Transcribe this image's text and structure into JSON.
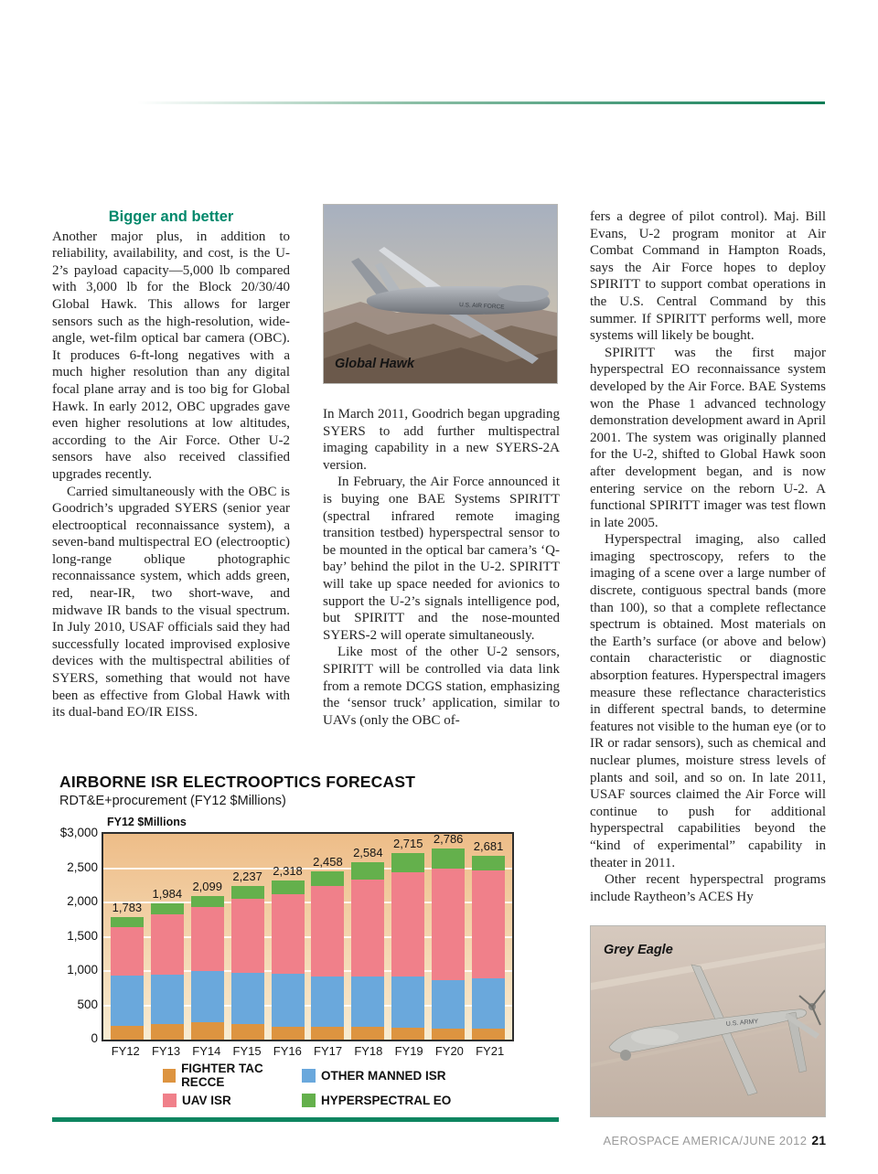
{
  "page": {
    "footer": {
      "magazine": "AEROSPACE AMERICA/JUNE 2012",
      "page_number": "21"
    }
  },
  "article": {
    "left_column": {
      "heading": "Bigger and better",
      "paragraphs": [
        "Another major plus, in addition to reliability, availability, and cost, is the U-2’s payload capacity—5,000 lb compared with 3,000 lb for the Block 20/30/40 Global Hawk. This allows for larger sensors such as the high-resolution, wide-angle, wet-film optical bar camera (OBC). It produces 6-ft-long negatives with a much higher resolution than any digital focal plane array and is too big for Global Hawk. In early 2012, OBC upgrades gave even higher resolutions at low altitudes, according to the Air Force. Other U-2 sensors have also received classified upgrades recently.",
        "Carried simultaneously with the OBC is Goodrich’s upgraded SYERS (senior year electrooptical reconnaissance system), a seven-band multispectral EO (electrooptic) long-range oblique photographic reconnaissance system, which adds green, red, near-IR, two short-wave, and midwave IR bands to the visual spectrum. In July 2010, USAF officials said they had successfully located improvised explosive devices with the multispectral abilities of SYERS, something that would not have been as effective from Global Hawk with its dual-band EO/IR EISS."
      ]
    },
    "middle_column": {
      "paragraphs": [
        "In March 2011, Goodrich began upgrading SYERS to add further multispectral imaging capability in a new SYERS-2A version.",
        "In February, the Air Force announced it is buying one BAE Systems SPIRITT (spectral infrared remote imaging transition testbed) hyperspectral sensor to be mounted in the optical bar camera’s ‘Q-bay’ behind the pilot in the U-2. SPIRITT will take up space needed for avionics to support the U-2’s signals intelligence pod, but SPIRITT and the nose-mounted SYERS-2 will operate simultaneously.",
        "Like most of the other U-2 sensors, SPIRITT will be controlled via data link from a remote DCGS station, emphasizing the ‘sensor truck’ application, similar to UAVs (only the OBC of-"
      ]
    },
    "right_column": {
      "paragraphs": [
        "fers a degree of pilot control). Maj. Bill Evans, U-2 program monitor at Air Combat Command in Hampton Roads, says the Air Force hopes to deploy SPIRITT to support combat operations in the U.S. Central Command by this summer. If SPIRITT performs well, more systems will likely be bought.",
        "SPIRITT was the first major hyperspectral EO reconnaissance system developed by the Air Force. BAE Systems won the Phase 1 advanced technology demonstration development award in April 2001. The system was originally planned for the U-2, shifted to Global Hawk soon after development began, and is now entering service on the reborn U-2. A functional SPIRITT imager was test flown in late 2005.",
        "Hyperspectral imaging, also called imaging spectroscopy, refers to the imaging of a scene over a large number of discrete, contiguous spectral bands (more than 100), so that a complete reflectance spectrum is obtained. Most materials on the Earth’s surface (or above and below) contain characteristic or diagnostic absorption features. Hyperspectral imagers measure these reflectance characteristics in different spectral bands, to determine features not visible to the human eye (or to IR or radar sensors), such as chemical and nuclear plumes, moisture stress levels of plants and soil, and so on. In late 2011, USAF sources claimed the Air Force will continue to push for additional hyperspectral capabilities beyond the “kind of experimental” capability in theater in 2011.",
        "Other recent hyperspectral programs include Raytheon’s ACES Hy"
      ]
    }
  },
  "photos": {
    "global_hawk": {
      "caption": "Global Hawk",
      "marking": "U.S. AIR FORCE"
    },
    "grey_eagle": {
      "caption": "Grey Eagle",
      "marking": "U.S. ARMY"
    }
  },
  "chart_data": {
    "type": "bar",
    "stacked": true,
    "title": "AIRBORNE ISR ELECTROOPTICS FORECAST",
    "subtitle": "RDT&E+procurement (FY12 $Millions)",
    "axis_label": "FY12 $Millions",
    "categories": [
      "FY12",
      "FY13",
      "FY14",
      "FY15",
      "FY16",
      "FY17",
      "FY18",
      "FY19",
      "FY20",
      "FY21"
    ],
    "series": [
      {
        "name": "FIGHTER TAC RECCE",
        "color": "#dd9440",
        "values": [
          200,
          230,
          255,
          230,
          192,
          192,
          184,
          170,
          157,
          165
        ]
      },
      {
        "name": "OTHER MANNED ISR",
        "color": "#6aa8dc",
        "values": [
          730,
          720,
          740,
          740,
          768,
          733,
          732,
          755,
          714,
          733
        ]
      },
      {
        "name": "UAV ISR",
        "color": "#f0808a",
        "values": [
          710,
          880,
          945,
          1090,
          1160,
          1315,
          1414,
          1515,
          1629,
          1572
        ]
      },
      {
        "name": "HYPERSPECTRAL EO",
        "color": "#64b04c",
        "values": [
          143,
          154,
          159,
          177,
          198,
          218,
          254,
          275,
          286,
          211
        ]
      }
    ],
    "totals": [
      1783,
      1984,
      2099,
      2237,
      2318,
      2458,
      2584,
      2715,
      2786,
      2681
    ],
    "total_labels": [
      "1,783",
      "1,984",
      "2,099",
      "2,237",
      "2,318",
      "2,458",
      "2,584",
      "2,715",
      "2,786",
      "2,681"
    ],
    "ylim": [
      0,
      3000
    ],
    "gridlines": [
      500,
      1000,
      1500,
      2000,
      2500
    ],
    "yticks": [
      {
        "label": "$3,000",
        "value": 3000
      },
      {
        "label": "2,500",
        "value": 2500
      },
      {
        "label": "2,000",
        "value": 2000
      },
      {
        "label": "1,500",
        "value": 1500
      },
      {
        "label": "1,000",
        "value": 1000
      },
      {
        "label": "500",
        "value": 500
      },
      {
        "label": "0",
        "value": 0
      }
    ],
    "legend_position": "bottom"
  }
}
